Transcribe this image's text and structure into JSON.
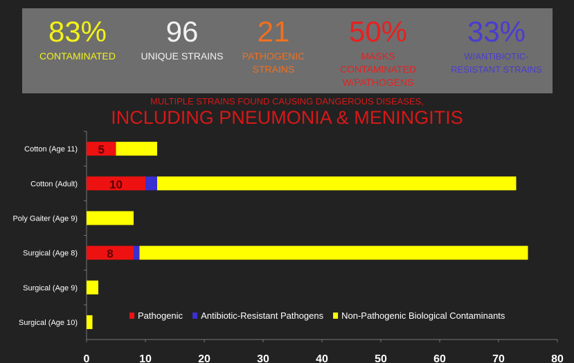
{
  "stats": [
    {
      "value": "83%",
      "label": "CONTAMINATED",
      "color": "#f2f21a"
    },
    {
      "value": "96",
      "label": "UNIQUE STRAINS",
      "color": "#f2f2f2"
    },
    {
      "value": "21",
      "label": "PATHOGENIC STRAINS",
      "color": "#f07020"
    },
    {
      "value": "50%",
      "label": "MASKS  CONTAMINATED W/PATHOGENS",
      "color": "#e82020"
    },
    {
      "value": "33%",
      "label": "W/ANTIBIOTIC-RESISTANT  STRAINS",
      "color": "#4a3cd0"
    }
  ],
  "subtitle": "MULTIPLE STRAINS FOUND CAUSING DANGEROUS DISEASES,",
  "headline": "INCLUDING PNEUMONIA & MENINGITIS",
  "chart_data": {
    "type": "bar",
    "orientation": "horizontal",
    "stacked": true,
    "categories": [
      "Cotton (Age 11)",
      "Cotton (Adult)",
      "Poly Gaiter (Age 9)",
      "Surgical (Age 8)",
      "Surgical (Age 9)",
      "Surgical (Age 10)"
    ],
    "series": [
      {
        "name": "Pathogenic",
        "color": "#ee1111",
        "values": [
          5,
          10,
          0,
          8,
          0,
          0
        ],
        "data_labels": [
          "5",
          "10",
          "",
          "8",
          "",
          ""
        ]
      },
      {
        "name": "Antibiotic-Resistant Pathogens",
        "color": "#3a2fd0",
        "values": [
          0,
          2,
          0,
          1,
          0,
          0
        ]
      },
      {
        "name": "Non-Pathogenic Biological Contaminants",
        "color": "#ffff00",
        "values": [
          7,
          61,
          8,
          66,
          2,
          1
        ]
      }
    ],
    "xlim": [
      0,
      80
    ],
    "xticks": [
      "0",
      "10",
      "20",
      "30",
      "40",
      "50",
      "60",
      "70",
      "80"
    ],
    "legend": "bottom-right",
    "grid": false
  }
}
